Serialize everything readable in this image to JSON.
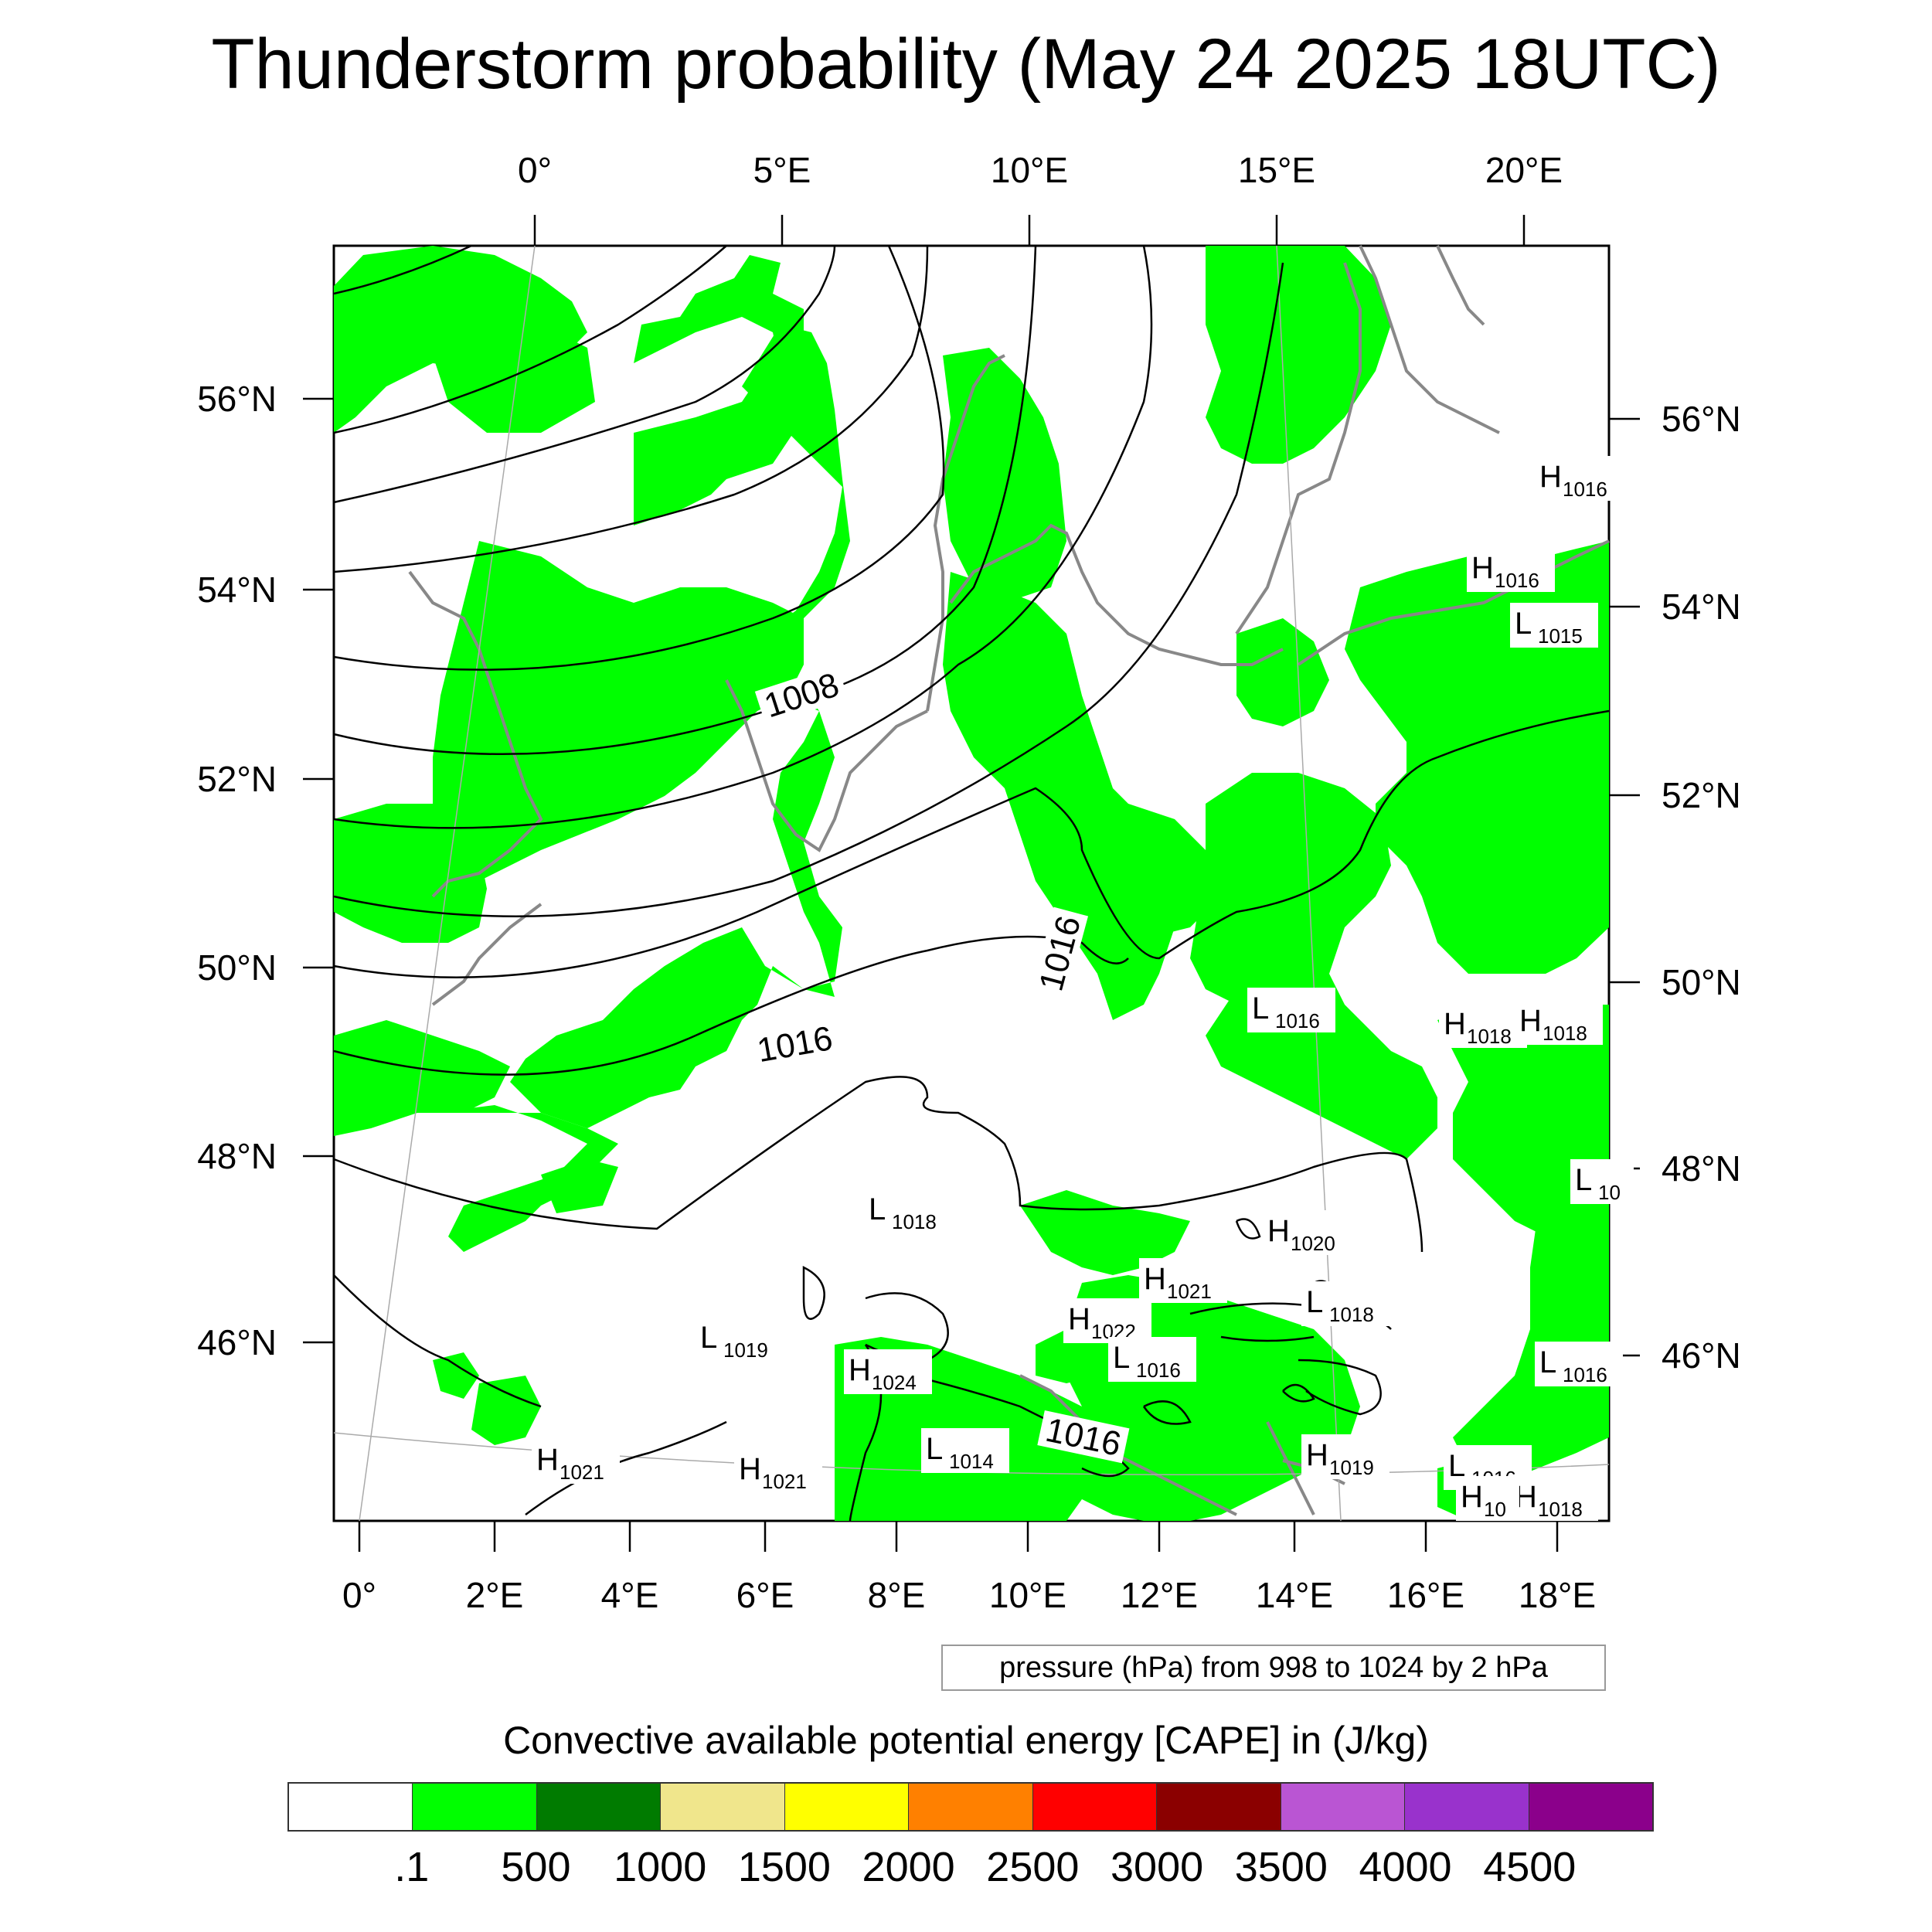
{
  "title": "Thunderstorm probability (May 24 2025 18UTC)",
  "top_lon_labels": [
    "0°",
    "5°E",
    "10°E",
    "15°E",
    "20°E"
  ],
  "bottom_lon_labels": [
    "0°",
    "2°E",
    "4°E",
    "6°E",
    "8°E",
    "10°E",
    "12°E",
    "14°E",
    "16°E",
    "18°E"
  ],
  "left_lat_labels": [
    "56°N",
    "54°N",
    "52°N",
    "50°N",
    "48°N",
    "46°N"
  ],
  "right_lat_labels": [
    "56°N",
    "54°N",
    "52°N",
    "50°N",
    "48°N",
    "46°N"
  ],
  "isobar_labels": [
    "1008",
    "1016",
    "1016",
    "1016"
  ],
  "pressure_centers": [
    {
      "type": "H",
      "value": "1016"
    },
    {
      "type": "H",
      "value": "1016"
    },
    {
      "type": "L",
      "value": "1015"
    },
    {
      "type": "L",
      "value": "1016"
    },
    {
      "type": "H",
      "value": "1018"
    },
    {
      "type": "H",
      "value": "1018"
    },
    {
      "type": "L",
      "value": "10"
    },
    {
      "type": "L",
      "value": "1018"
    },
    {
      "type": "H",
      "value": "1020"
    },
    {
      "type": "H",
      "value": "1021"
    },
    {
      "type": "L",
      "value": "1018"
    },
    {
      "type": "H",
      "value": "1022"
    },
    {
      "type": "L",
      "value": "1016"
    },
    {
      "type": "L",
      "value": "1019"
    },
    {
      "type": "H",
      "value": "1024"
    },
    {
      "type": "L",
      "value": "1016"
    },
    {
      "type": "L",
      "value": "1014"
    },
    {
      "type": "H",
      "value": "1021"
    },
    {
      "type": "H",
      "value": "1021"
    },
    {
      "type": "H",
      "value": "1019"
    },
    {
      "type": "L",
      "value": "1016"
    },
    {
      "type": "H",
      "value": "1018"
    },
    {
      "type": "H",
      "value": "10"
    }
  ],
  "pressure_note": "pressure (hPa) from 998 to 1024 by 2 hPa",
  "legend": {
    "title": "Convective available potential energy [CAPE] in (J/kg)",
    "colors": [
      "#ffffff",
      "#00ff00",
      "#007b00",
      "#f0e68c",
      "#ffff00",
      "#ff8000",
      "#ff0000",
      "#8b0000",
      "#ba55d3",
      "#9932cc",
      "#8b008b"
    ],
    "labels": [
      ".1",
      "500",
      "1000",
      "1500",
      "2000",
      "2500",
      "3000",
      "3500",
      "4000",
      "4500"
    ]
  }
}
